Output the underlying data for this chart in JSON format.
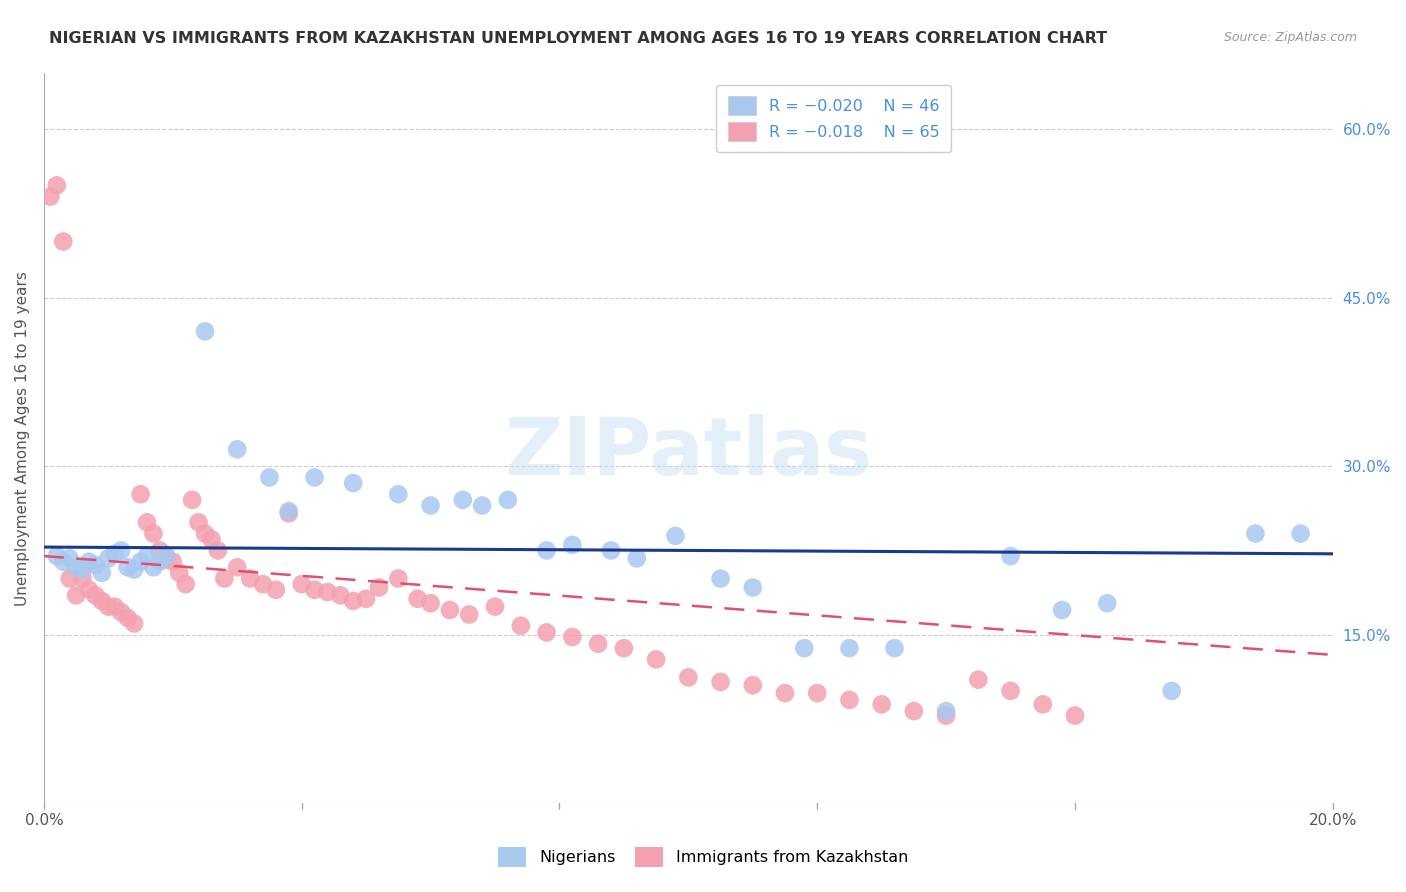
{
  "title": "NIGERIAN VS IMMIGRANTS FROM KAZAKHSTAN UNEMPLOYMENT AMONG AGES 16 TO 19 YEARS CORRELATION CHART",
  "source": "Source: ZipAtlas.com",
  "ylabel": "Unemployment Among Ages 16 to 19 years",
  "xlim": [
    0.0,
    0.2
  ],
  "ylim": [
    0.0,
    0.65
  ],
  "xticks": [
    0.0,
    0.04,
    0.08,
    0.12,
    0.16,
    0.2
  ],
  "xtick_labels": [
    "0.0%",
    "",
    "",
    "",
    "",
    "20.0%"
  ],
  "yticks_right": [
    0.0,
    0.15,
    0.3,
    0.45,
    0.6
  ],
  "ytick_labels_right": [
    "",
    "15.0%",
    "30.0%",
    "45.0%",
    "60.0%"
  ],
  "nigerians_R": -0.02,
  "nigerians_N": 46,
  "kazakhstan_R": -0.018,
  "kazakhstan_N": 65,
  "blue_color": "#a8c8f0",
  "blue_line_color": "#1a3a8c",
  "pink_color": "#f4a0b0",
  "pink_line_color": "#e05070",
  "watermark": "ZIPatlas",
  "nigerians_x": [
    0.002,
    0.003,
    0.004,
    0.005,
    0.006,
    0.007,
    0.008,
    0.009,
    0.01,
    0.011,
    0.012,
    0.013,
    0.014,
    0.015,
    0.016,
    0.017,
    0.018,
    0.019,
    0.025,
    0.03,
    0.035,
    0.038,
    0.042,
    0.048,
    0.055,
    0.06,
    0.065,
    0.068,
    0.072,
    0.078,
    0.082,
    0.088,
    0.092,
    0.098,
    0.105,
    0.11,
    0.118,
    0.125,
    0.132,
    0.14,
    0.15,
    0.158,
    0.165,
    0.175,
    0.188,
    0.195
  ],
  "nigerians_y": [
    0.22,
    0.215,
    0.218,
    0.21,
    0.208,
    0.215,
    0.212,
    0.205,
    0.218,
    0.222,
    0.225,
    0.21,
    0.208,
    0.215,
    0.22,
    0.21,
    0.215,
    0.22,
    0.42,
    0.315,
    0.29,
    0.26,
    0.29,
    0.285,
    0.275,
    0.265,
    0.27,
    0.265,
    0.27,
    0.225,
    0.23,
    0.225,
    0.218,
    0.238,
    0.2,
    0.192,
    0.138,
    0.138,
    0.138,
    0.082,
    0.22,
    0.172,
    0.178,
    0.1,
    0.24,
    0.24
  ],
  "kazakhstan_x": [
    0.001,
    0.002,
    0.003,
    0.004,
    0.005,
    0.006,
    0.007,
    0.008,
    0.009,
    0.01,
    0.011,
    0.012,
    0.013,
    0.014,
    0.015,
    0.016,
    0.017,
    0.018,
    0.019,
    0.02,
    0.021,
    0.022,
    0.023,
    0.024,
    0.025,
    0.026,
    0.027,
    0.028,
    0.03,
    0.032,
    0.034,
    0.036,
    0.038,
    0.04,
    0.042,
    0.044,
    0.046,
    0.048,
    0.05,
    0.052,
    0.055,
    0.058,
    0.06,
    0.063,
    0.066,
    0.07,
    0.074,
    0.078,
    0.082,
    0.086,
    0.09,
    0.095,
    0.1,
    0.105,
    0.11,
    0.115,
    0.12,
    0.125,
    0.13,
    0.135,
    0.14,
    0.145,
    0.15,
    0.155,
    0.16
  ],
  "kazakhstan_y": [
    0.54,
    0.55,
    0.5,
    0.2,
    0.185,
    0.2,
    0.19,
    0.185,
    0.18,
    0.175,
    0.175,
    0.17,
    0.165,
    0.16,
    0.275,
    0.25,
    0.24,
    0.225,
    0.218,
    0.215,
    0.205,
    0.195,
    0.27,
    0.25,
    0.24,
    0.235,
    0.225,
    0.2,
    0.21,
    0.2,
    0.195,
    0.19,
    0.258,
    0.195,
    0.19,
    0.188,
    0.185,
    0.18,
    0.182,
    0.192,
    0.2,
    0.182,
    0.178,
    0.172,
    0.168,
    0.175,
    0.158,
    0.152,
    0.148,
    0.142,
    0.138,
    0.128,
    0.112,
    0.108,
    0.105,
    0.098,
    0.098,
    0.092,
    0.088,
    0.082,
    0.078,
    0.11,
    0.1,
    0.088,
    0.078
  ],
  "blue_trend_x": [
    0.0,
    0.2
  ],
  "blue_trend_y": [
    0.228,
    0.222
  ],
  "pink_trend_x": [
    0.0,
    0.2
  ],
  "pink_trend_y": [
    0.22,
    0.132
  ]
}
